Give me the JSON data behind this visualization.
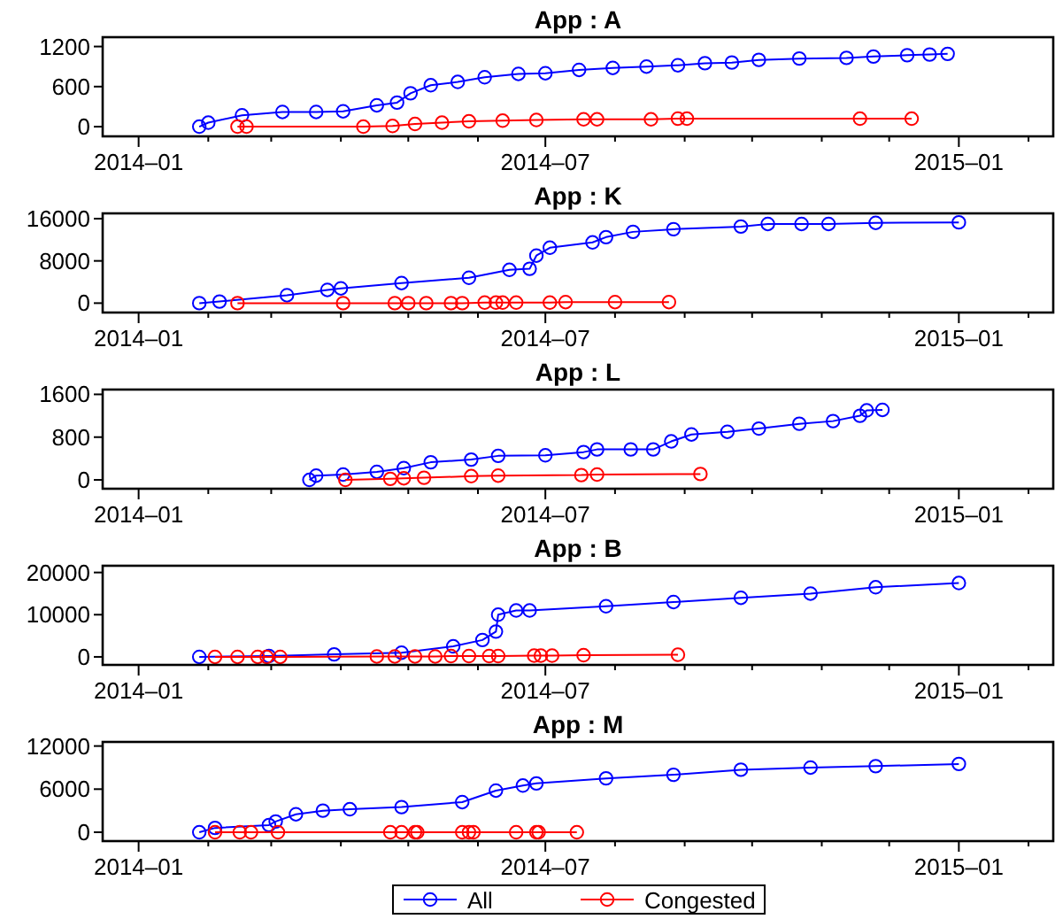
{
  "chart_data": [
    {
      "type": "line",
      "title": "App : A",
      "marker": "circle",
      "xlim": [
        "2013-12-16",
        "2015-02-12"
      ],
      "xticks": [
        {
          "value": "2014-01-01",
          "label": "2014–01"
        },
        {
          "value": "2014-02-01",
          "label": null
        },
        {
          "value": "2014-03-01",
          "label": null
        },
        {
          "value": "2014-04-01",
          "label": null
        },
        {
          "value": "2014-05-01",
          "label": null
        },
        {
          "value": "2014-06-01",
          "label": null
        },
        {
          "value": "2014-07-01",
          "label": "2014–07"
        },
        {
          "value": "2014-08-01",
          "label": null
        },
        {
          "value": "2014-09-01",
          "label": null
        },
        {
          "value": "2014-10-01",
          "label": null
        },
        {
          "value": "2014-11-01",
          "label": null
        },
        {
          "value": "2014-12-01",
          "label": null
        },
        {
          "value": "2015-01-01",
          "label": "2015–01"
        },
        {
          "value": "2015-02-01",
          "label": null
        }
      ],
      "ylim": [
        -145,
        1340
      ],
      "yticks": [
        0,
        600,
        1200
      ],
      "series": [
        {
          "color": "#0000ff",
          "x": [
            "2014-01-28",
            "2014-02-01",
            "2014-02-16",
            "2014-03-06",
            "2014-03-21",
            "2014-04-02",
            "2014-04-17",
            "2014-04-26",
            "2014-05-02",
            "2014-05-11",
            "2014-05-23",
            "2014-06-04",
            "2014-06-19",
            "2014-07-01",
            "2014-07-16",
            "2014-07-31",
            "2014-08-15",
            "2014-08-29",
            "2014-09-10",
            "2014-09-22",
            "2014-10-04",
            "2014-10-22",
            "2014-11-12",
            "2014-11-24",
            "2014-12-09",
            "2014-12-19",
            "2014-12-27"
          ],
          "values": [
            0,
            60,
            170,
            220,
            220,
            230,
            320,
            360,
            500,
            620,
            670,
            740,
            790,
            800,
            850,
            880,
            900,
            920,
            950,
            960,
            1000,
            1020,
            1030,
            1050,
            1070,
            1080,
            1090
          ]
        },
        {
          "color": "#ff0000",
          "x": [
            "2014-02-14",
            "2014-02-18",
            "2014-04-11",
            "2014-04-24",
            "2014-05-04",
            "2014-05-16",
            "2014-05-28",
            "2014-06-12",
            "2014-06-27",
            "2014-07-18",
            "2014-07-24",
            "2014-08-17",
            "2014-08-29",
            "2014-09-02",
            "2014-11-18",
            "2014-12-11"
          ],
          "values": [
            0,
            0,
            0,
            10,
            40,
            60,
            80,
            90,
            100,
            110,
            110,
            110,
            120,
            120,
            120,
            120
          ]
        }
      ]
    },
    {
      "type": "line",
      "title": "App : K",
      "marker": "circle",
      "xlim": [
        "2013-12-16",
        "2015-02-12"
      ],
      "xticks": [
        {
          "value": "2014-01-01",
          "label": "2014–01"
        },
        {
          "value": "2014-02-01",
          "label": null
        },
        {
          "value": "2014-03-01",
          "label": null
        },
        {
          "value": "2014-04-01",
          "label": null
        },
        {
          "value": "2014-05-01",
          "label": null
        },
        {
          "value": "2014-06-01",
          "label": null
        },
        {
          "value": "2014-07-01",
          "label": "2014–07"
        },
        {
          "value": "2014-08-01",
          "label": null
        },
        {
          "value": "2014-09-01",
          "label": null
        },
        {
          "value": "2014-10-01",
          "label": null
        },
        {
          "value": "2014-11-01",
          "label": null
        },
        {
          "value": "2014-12-01",
          "label": null
        },
        {
          "value": "2015-01-01",
          "label": "2015–01"
        },
        {
          "value": "2015-02-01",
          "label": null
        }
      ],
      "ylim": [
        -1780,
        17000
      ],
      "yticks": [
        0,
        8000,
        16000
      ],
      "series": [
        {
          "color": "#0000ff",
          "x": [
            "2014-01-28",
            "2014-02-06",
            "2014-03-08",
            "2014-03-26",
            "2014-04-01",
            "2014-04-28",
            "2014-05-28",
            "2014-06-15",
            "2014-06-24",
            "2014-06-27",
            "2014-07-03",
            "2014-07-22",
            "2014-07-28",
            "2014-08-09",
            "2014-08-27",
            "2014-09-26",
            "2014-10-08",
            "2014-10-23",
            "2014-11-04",
            "2014-11-25",
            "2015-01-01"
          ],
          "values": [
            0,
            300,
            1500,
            2500,
            2800,
            3800,
            4800,
            6300,
            6500,
            9000,
            10500,
            11500,
            12500,
            13500,
            14000,
            14500,
            15000,
            15000,
            15000,
            15200,
            15300
          ]
        },
        {
          "color": "#ff0000",
          "x": [
            "2014-02-14",
            "2014-04-02",
            "2014-04-25",
            "2014-05-01",
            "2014-05-09",
            "2014-05-20",
            "2014-05-25",
            "2014-06-04",
            "2014-06-09",
            "2014-06-12",
            "2014-06-18",
            "2014-07-03",
            "2014-07-10",
            "2014-08-01",
            "2014-08-25"
          ],
          "values": [
            0,
            0,
            0,
            0,
            0,
            0,
            0,
            100,
            100,
            100,
            100,
            100,
            200,
            200,
            200
          ]
        }
      ]
    },
    {
      "type": "line",
      "title": "App : L",
      "marker": "circle",
      "xlim": [
        "2013-12-16",
        "2015-02-12"
      ],
      "xticks": [
        {
          "value": "2014-01-01",
          "label": "2014–01"
        },
        {
          "value": "2014-02-01",
          "label": null
        },
        {
          "value": "2014-03-01",
          "label": null
        },
        {
          "value": "2014-04-01",
          "label": null
        },
        {
          "value": "2014-05-01",
          "label": null
        },
        {
          "value": "2014-06-01",
          "label": null
        },
        {
          "value": "2014-07-01",
          "label": "2014–07"
        },
        {
          "value": "2014-08-01",
          "label": null
        },
        {
          "value": "2014-09-01",
          "label": null
        },
        {
          "value": "2014-10-01",
          "label": null
        },
        {
          "value": "2014-11-01",
          "label": null
        },
        {
          "value": "2014-12-01",
          "label": null
        },
        {
          "value": "2015-01-01",
          "label": "2015–01"
        },
        {
          "value": "2015-02-01",
          "label": null
        }
      ],
      "ylim": [
        -165,
        1690
      ],
      "yticks": [
        0,
        800,
        1600
      ],
      "series": [
        {
          "color": "#0000ff",
          "x": [
            "2014-03-18",
            "2014-03-21",
            "2014-04-02",
            "2014-04-17",
            "2014-04-29",
            "2014-05-11",
            "2014-05-29",
            "2014-06-10",
            "2014-07-01",
            "2014-07-18",
            "2014-07-24",
            "2014-08-08",
            "2014-08-18",
            "2014-08-26",
            "2014-09-04",
            "2014-09-20",
            "2014-10-04",
            "2014-10-22",
            "2014-11-06",
            "2014-11-18",
            "2014-11-21",
            "2014-11-28"
          ],
          "values": [
            0,
            80,
            100,
            150,
            220,
            330,
            380,
            450,
            460,
            520,
            570,
            570,
            570,
            720,
            850,
            900,
            960,
            1050,
            1100,
            1200,
            1300,
            1310
          ]
        },
        {
          "color": "#ff0000",
          "x": [
            "2014-04-03",
            "2014-04-23",
            "2014-04-29",
            "2014-05-08",
            "2014-05-29",
            "2014-06-10",
            "2014-07-17",
            "2014-07-24",
            "2014-09-08"
          ],
          "values": [
            0,
            20,
            30,
            40,
            70,
            80,
            90,
            100,
            110
          ]
        }
      ]
    },
    {
      "type": "line",
      "title": "App : B",
      "marker": "circle",
      "xlim": [
        "2013-12-16",
        "2015-02-12"
      ],
      "xticks": [
        {
          "value": "2014-01-01",
          "label": "2014–01"
        },
        {
          "value": "2014-02-01",
          "label": null
        },
        {
          "value": "2014-03-01",
          "label": null
        },
        {
          "value": "2014-04-01",
          "label": null
        },
        {
          "value": "2014-05-01",
          "label": null
        },
        {
          "value": "2014-06-01",
          "label": null
        },
        {
          "value": "2014-07-01",
          "label": "2014–07"
        },
        {
          "value": "2014-08-01",
          "label": null
        },
        {
          "value": "2014-09-01",
          "label": null
        },
        {
          "value": "2014-10-01",
          "label": null
        },
        {
          "value": "2014-11-01",
          "label": null
        },
        {
          "value": "2014-12-01",
          "label": null
        },
        {
          "value": "2015-01-01",
          "label": "2015–01"
        },
        {
          "value": "2015-02-01",
          "label": null
        }
      ],
      "ylim": [
        -1900,
        21600
      ],
      "yticks": [
        0,
        10000,
        20000
      ],
      "series": [
        {
          "color": "#0000ff",
          "x": [
            "2014-01-28",
            "2014-02-28",
            "2014-03-29",
            "2014-04-28",
            "2014-05-21",
            "2014-06-03",
            "2014-06-09",
            "2014-06-10",
            "2014-06-18",
            "2014-06-24",
            "2014-07-28",
            "2014-08-27",
            "2014-09-26",
            "2014-10-27",
            "2014-11-25",
            "2015-01-01"
          ],
          "values": [
            0,
            200,
            600,
            1000,
            2500,
            4000,
            6000,
            10000,
            11000,
            11000,
            12000,
            13000,
            14000,
            15000,
            16500,
            17500
          ]
        },
        {
          "color": "#ff0000",
          "x": [
            "2014-02-04",
            "2014-02-14",
            "2014-02-23",
            "2014-02-27",
            "2014-03-05",
            "2014-04-17",
            "2014-04-25",
            "2014-05-04",
            "2014-05-13",
            "2014-05-20",
            "2014-05-28",
            "2014-06-06",
            "2014-06-10",
            "2014-06-26",
            "2014-06-29",
            "2014-07-04",
            "2014-07-18",
            "2014-08-29"
          ],
          "values": [
            0,
            0,
            0,
            0,
            0,
            100,
            100,
            100,
            100,
            200,
            200,
            200,
            200,
            300,
            300,
            300,
            400,
            500
          ]
        }
      ]
    },
    {
      "type": "line",
      "title": "App : M",
      "marker": "circle",
      "legend": "bottom",
      "xlim": [
        "2013-12-16",
        "2015-02-12"
      ],
      "xticks": [
        {
          "value": "2014-01-01",
          "label": "2014–01"
        },
        {
          "value": "2014-02-01",
          "label": null
        },
        {
          "value": "2014-03-01",
          "label": null
        },
        {
          "value": "2014-04-01",
          "label": null
        },
        {
          "value": "2014-05-01",
          "label": null
        },
        {
          "value": "2014-06-01",
          "label": null
        },
        {
          "value": "2014-07-01",
          "label": "2014–07"
        },
        {
          "value": "2014-08-01",
          "label": null
        },
        {
          "value": "2014-09-01",
          "label": null
        },
        {
          "value": "2014-10-01",
          "label": null
        },
        {
          "value": "2014-11-01",
          "label": null
        },
        {
          "value": "2014-12-01",
          "label": null
        },
        {
          "value": "2015-01-01",
          "label": "2015–01"
        },
        {
          "value": "2015-02-01",
          "label": null
        }
      ],
      "ylim": [
        -1230,
        12570
      ],
      "yticks": [
        0,
        6000,
        12000
      ],
      "series": [
        {
          "name": "All",
          "color": "#0000ff",
          "x": [
            "2014-01-28",
            "2014-02-04",
            "2014-02-28",
            "2014-03-03",
            "2014-03-12",
            "2014-03-24",
            "2014-04-05",
            "2014-04-28",
            "2014-05-25",
            "2014-06-09",
            "2014-06-21",
            "2014-06-27",
            "2014-07-28",
            "2014-08-27",
            "2014-09-26",
            "2014-10-27",
            "2014-11-25",
            "2015-01-01"
          ],
          "values": [
            0,
            600,
            1000,
            1500,
            2500,
            3000,
            3200,
            3500,
            4200,
            5800,
            6500,
            6800,
            7500,
            8000,
            8700,
            9000,
            9200,
            9500
          ]
        },
        {
          "name": "Congested",
          "color": "#ff0000",
          "x": [
            "2014-02-04",
            "2014-02-15",
            "2014-02-20",
            "2014-03-04",
            "2014-04-23",
            "2014-04-28",
            "2014-05-04",
            "2014-05-05",
            "2014-05-25",
            "2014-05-28",
            "2014-05-30",
            "2014-06-18",
            "2014-06-27",
            "2014-06-28",
            "2014-07-15"
          ],
          "values": [
            0,
            0,
            0,
            0,
            0,
            0,
            0,
            0,
            0,
            0,
            0,
            0,
            0,
            0,
            0
          ]
        }
      ]
    }
  ]
}
